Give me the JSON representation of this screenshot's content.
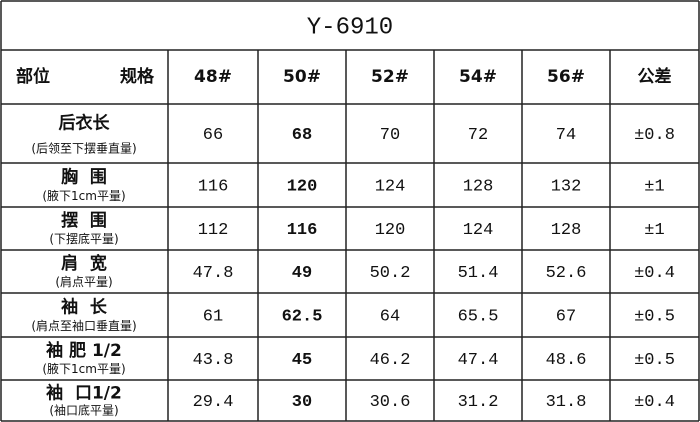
{
  "title": "Y-6910",
  "table": {
    "corner": [
      "部位",
      "规格"
    ],
    "columns": [
      "48#",
      "50#",
      "52#",
      "54#",
      "56#",
      "公差"
    ],
    "rows": [
      {
        "label": "后衣长",
        "note": "(后领至下摆垂直量)",
        "cells": [
          "66",
          "68",
          "70",
          "72",
          "74",
          "±0.8"
        ]
      },
      {
        "label": "胸  围",
        "note": "(腋下1cm平量)",
        "cells": [
          "116",
          "120",
          "124",
          "128",
          "132",
          "±1"
        ]
      },
      {
        "label": "摆  围",
        "note": "(下摆底平量)",
        "cells": [
          "112",
          "116",
          "120",
          "124",
          "128",
          "±1"
        ]
      },
      {
        "label": "肩  宽",
        "note": "(肩点平量)",
        "cells": [
          "47.8",
          "49",
          "50.2",
          "51.4",
          "52.6",
          "±0.4"
        ]
      },
      {
        "label": "袖  长",
        "note": "(肩点至袖口垂直量)",
        "cells": [
          "61",
          "62.5",
          "64",
          "65.5",
          "67",
          "±0.5"
        ]
      },
      {
        "label": "袖 肥 1/2",
        "note": "(腋下1cm平量)",
        "cells": [
          "43.8",
          "45",
          "46.2",
          "47.4",
          "48.6",
          "±0.5"
        ]
      },
      {
        "label": "袖  口1/2",
        "note": "(袖口底平量)",
        "cells": [
          "29.4",
          "30",
          "30.6",
          "31.2",
          "31.8",
          "±0.4"
        ]
      }
    ]
  }
}
